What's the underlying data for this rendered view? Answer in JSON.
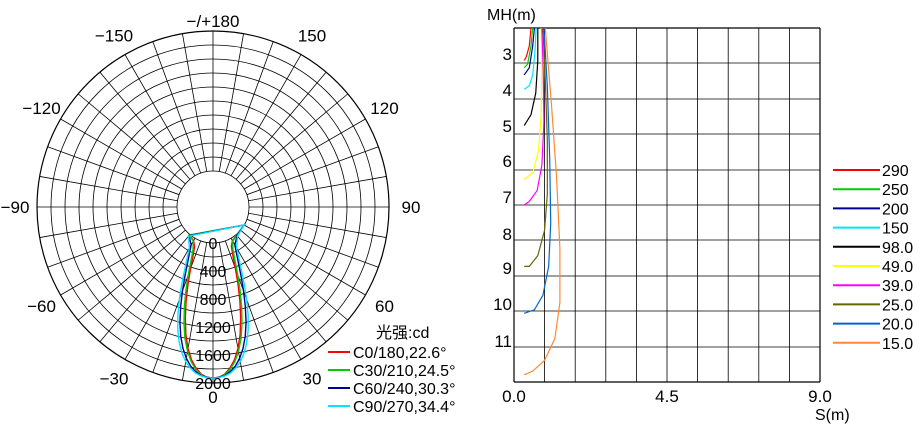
{
  "chart_data": [
    {
      "type": "polar",
      "angle_labels": [
        {
          "angle": 180,
          "label": "−/+180"
        },
        {
          "angle": -150,
          "label": "−150"
        },
        {
          "angle": 150,
          "label": "150"
        },
        {
          "angle": -120,
          "label": "−120"
        },
        {
          "angle": 120,
          "label": "120"
        },
        {
          "angle": -90,
          "label": "−90"
        },
        {
          "angle": 90,
          "label": "90"
        },
        {
          "angle": -60,
          "label": "−60"
        },
        {
          "angle": 60,
          "label": "60"
        },
        {
          "angle": -30,
          "label": "−30"
        },
        {
          "angle": 30,
          "label": "30"
        },
        {
          "angle": 0,
          "label": "0"
        }
      ],
      "radial_max": 2000,
      "radial_ticks": [
        0,
        400,
        800,
        1200,
        1600,
        2000
      ],
      "unit_label": "光强:cd",
      "series": [
        {
          "name": "C0/180,22.6°",
          "color": "#ff0000",
          "points": [
            [
              0,
              1930
            ],
            [
              2,
              1920
            ],
            [
              4,
              1880
            ],
            [
              6,
              1800
            ],
            [
              8,
              1690
            ],
            [
              10,
              1540
            ],
            [
              12,
              1350
            ],
            [
              14,
              1120
            ],
            [
              16,
              880
            ],
            [
              18,
              640
            ],
            [
              20,
              420
            ],
            [
              22,
              250
            ],
            [
              25,
              110
            ],
            [
              30,
              40
            ],
            [
              40,
              10
            ],
            [
              60,
              0
            ]
          ]
        },
        {
          "name": "C30/210,24.5°",
          "color": "#00cc00",
          "points": [
            [
              0,
              1930
            ],
            [
              2,
              1920
            ],
            [
              4,
              1890
            ],
            [
              6,
              1820
            ],
            [
              8,
              1720
            ],
            [
              10,
              1580
            ],
            [
              12,
              1410
            ],
            [
              14,
              1200
            ],
            [
              16,
              970
            ],
            [
              18,
              740
            ],
            [
              20,
              520
            ],
            [
              22,
              340
            ],
            [
              25,
              160
            ],
            [
              30,
              50
            ],
            [
              40,
              10
            ],
            [
              60,
              0
            ]
          ]
        },
        {
          "name": "C60/240,30.3°",
          "color": "#000099",
          "points": [
            [
              0,
              1930
            ],
            [
              2,
              1920
            ],
            [
              4,
              1900
            ],
            [
              6,
              1850
            ],
            [
              8,
              1780
            ],
            [
              10,
              1680
            ],
            [
              12,
              1550
            ],
            [
              14,
              1390
            ],
            [
              16,
              1200
            ],
            [
              18,
              980
            ],
            [
              20,
              760
            ],
            [
              22,
              560
            ],
            [
              25,
              330
            ],
            [
              30,
              110
            ],
            [
              40,
              20
            ],
            [
              60,
              0
            ]
          ]
        },
        {
          "name": "C90/270,34.4°",
          "color": "#00e5ff",
          "points": [
            [
              0,
              1930
            ],
            [
              2,
              1925
            ],
            [
              4,
              1905
            ],
            [
              6,
              1870
            ],
            [
              8,
              1810
            ],
            [
              10,
              1730
            ],
            [
              12,
              1620
            ],
            [
              14,
              1480
            ],
            [
              16,
              1310
            ],
            [
              18,
              1110
            ],
            [
              20,
              890
            ],
            [
              22,
              680
            ],
            [
              25,
              420
            ],
            [
              30,
              160
            ],
            [
              40,
              30
            ],
            [
              60,
              0
            ]
          ]
        }
      ]
    },
    {
      "type": "line",
      "ylabel": "MH(m)",
      "xlabel": "S(m)",
      "x_ticks": [
        "0.0",
        "4.5",
        "9.0"
      ],
      "y_ticks": [
        "3",
        "4",
        "5",
        "6",
        "7",
        "8",
        "9",
        "10",
        "11"
      ],
      "xlim": [
        0,
        9
      ],
      "ylim": [
        2.4,
        12.2
      ],
      "series": [
        {
          "name": "290",
          "color": "#ff0000",
          "points": [
            [
              0.5,
              2.4
            ],
            [
              0.45,
              2.9
            ],
            [
              0.36,
              3.2
            ],
            [
              0.3,
              3.3
            ]
          ]
        },
        {
          "name": "250",
          "color": "#00cc00",
          "points": [
            [
              0.55,
              2.4
            ],
            [
              0.5,
              2.9
            ],
            [
              0.4,
              3.4
            ],
            [
              0.3,
              3.5
            ]
          ]
        },
        {
          "name": "200",
          "color": "#000099",
          "points": [
            [
              0.6,
              2.4
            ],
            [
              0.55,
              2.9
            ],
            [
              0.45,
              3.5
            ],
            [
              0.3,
              3.7
            ]
          ]
        },
        {
          "name": "150",
          "color": "#00e5ff",
          "points": [
            [
              0.65,
              2.4
            ],
            [
              0.62,
              3.0
            ],
            [
              0.55,
              3.7
            ],
            [
              0.45,
              4.0
            ],
            [
              0.3,
              4.1
            ]
          ]
        },
        {
          "name": "98.0",
          "color": "#000000",
          "points": [
            [
              0.7,
              2.4
            ],
            [
              0.7,
              3.3
            ],
            [
              0.64,
              4.2
            ],
            [
              0.5,
              4.8
            ],
            [
              0.3,
              5.1
            ]
          ]
        },
        {
          "name": "49.0",
          "color": "#ffff00",
          "points": [
            [
              0.8,
              2.4
            ],
            [
              0.82,
              3.5
            ],
            [
              0.8,
              4.8
            ],
            [
              0.72,
              5.8
            ],
            [
              0.55,
              6.4
            ],
            [
              0.3,
              6.6
            ]
          ]
        },
        {
          "name": "39.0",
          "color": "#ff00ff",
          "points": [
            [
              0.82,
              2.4
            ],
            [
              0.86,
              3.6
            ],
            [
              0.88,
              5.0
            ],
            [
              0.82,
              6.2
            ],
            [
              0.68,
              6.9
            ],
            [
              0.45,
              7.2
            ],
            [
              0.3,
              7.3
            ]
          ]
        },
        {
          "name": "25.0",
          "color": "#666600",
          "points": [
            [
              0.85,
              2.4
            ],
            [
              0.92,
              3.8
            ],
            [
              0.98,
              5.5
            ],
            [
              0.98,
              7.0
            ],
            [
              0.9,
              8.0
            ],
            [
              0.7,
              8.7
            ],
            [
              0.45,
              9.0
            ],
            [
              0.3,
              9.0
            ]
          ]
        },
        {
          "name": "20.0",
          "color": "#0066cc",
          "points": [
            [
              0.88,
              2.4
            ],
            [
              0.98,
              4.0
            ],
            [
              1.05,
              6.0
            ],
            [
              1.08,
              7.8
            ],
            [
              1.02,
              9.0
            ],
            [
              0.85,
              9.8
            ],
            [
              0.6,
              10.2
            ],
            [
              0.3,
              10.3
            ]
          ]
        },
        {
          "name": "15.0",
          "color": "#ff8833",
          "points": [
            [
              0.92,
              2.4
            ],
            [
              1.1,
              4.5
            ],
            [
              1.25,
              6.5
            ],
            [
              1.35,
              8.5
            ],
            [
              1.35,
              10.0
            ],
            [
              1.2,
              11.0
            ],
            [
              0.9,
              11.6
            ],
            [
              0.55,
              11.9
            ],
            [
              0.3,
              12.0
            ]
          ]
        }
      ]
    }
  ]
}
